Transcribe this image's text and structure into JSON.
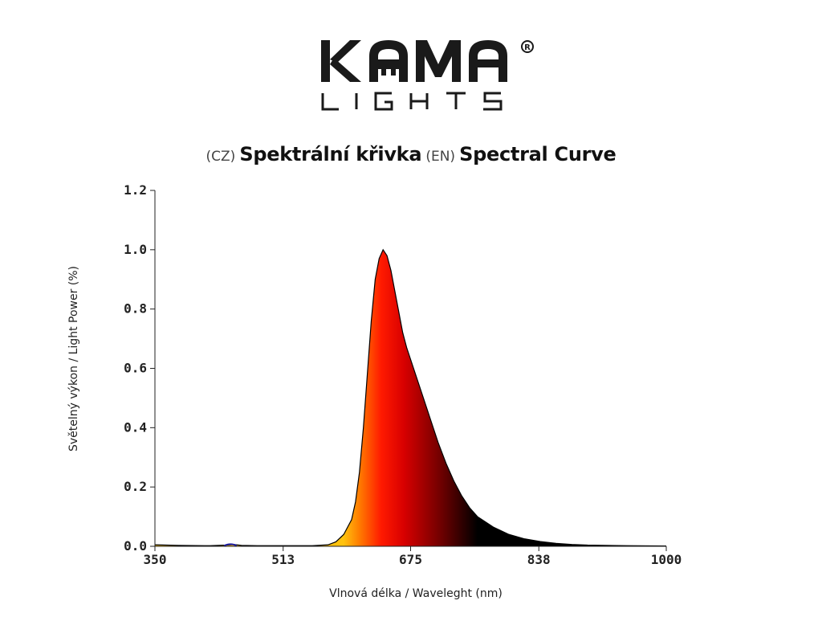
{
  "brand": {
    "name": "KAMA",
    "subline": "LIGHTS",
    "registered_mark": "®"
  },
  "title": {
    "cz_tag": "(CZ)",
    "cz_text": "Spektrální křivka",
    "en_tag": "(EN)",
    "en_text": "Spectral Curve"
  },
  "chart_data": {
    "type": "area",
    "xlabel": "Vlnová délka / Waveleght (nm)",
    "ylabel": "Světelný výkon / Light Power (%)",
    "xlim": [
      350,
      1000
    ],
    "ylim": [
      0,
      1.2
    ],
    "xticks": [
      "350",
      "513",
      "675",
      "838",
      "1000"
    ],
    "yticks": [
      "0.0",
      "0.2",
      "0.4",
      "0.6",
      "0.8",
      "1.0",
      "1.2"
    ],
    "grid": false,
    "series": [
      {
        "x": [
          350,
          380,
          420,
          440,
          450,
          460,
          480,
          500,
          550,
          570,
          580,
          590,
          600,
          605,
          610,
          615,
          620,
          625,
          630,
          635,
          640,
          645,
          650,
          655,
          660,
          665,
          670,
          675,
          680,
          690,
          700,
          710,
          720,
          730,
          740,
          750,
          760,
          780,
          800,
          820,
          840,
          860,
          880,
          900,
          950,
          1000
        ],
        "y": [
          0.005,
          0.003,
          0.002,
          0.004,
          0.006,
          0.003,
          0.002,
          0.002,
          0.002,
          0.005,
          0.015,
          0.04,
          0.09,
          0.15,
          0.25,
          0.4,
          0.58,
          0.76,
          0.9,
          0.97,
          1.0,
          0.98,
          0.93,
          0.86,
          0.79,
          0.72,
          0.67,
          0.63,
          0.59,
          0.51,
          0.43,
          0.35,
          0.28,
          0.22,
          0.17,
          0.13,
          0.1,
          0.065,
          0.04,
          0.025,
          0.016,
          0.01,
          0.006,
          0.004,
          0.002,
          0.001
        ]
      }
    ],
    "colors": {
      "fill_start": "#ffc20e",
      "fill_orange": "#ff7a00",
      "fill_red": "#ff1a00",
      "fill_deep_red": "#d80000",
      "fill_dark_red": "#7a0000",
      "fill_end": "#000000",
      "outline": "#000000",
      "blue_blip": "#1a1aa0"
    }
  }
}
